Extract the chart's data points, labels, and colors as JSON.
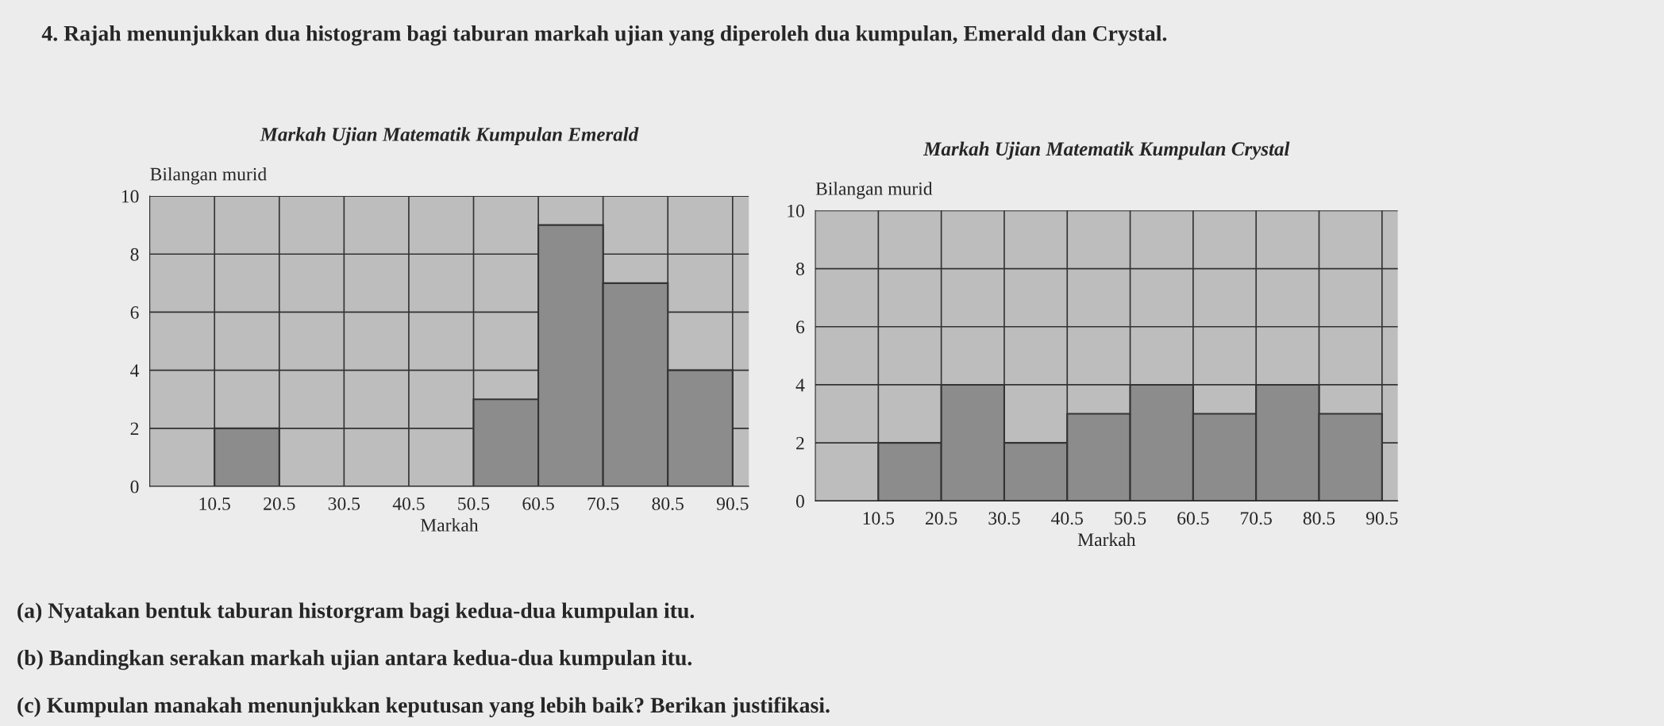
{
  "chart_data": [
    {
      "type": "histogram",
      "title": "Markah Ujian Matematik Kumpulan Emerald",
      "xlabel": "Markah",
      "ylabel": "Bilangan murid",
      "bins": [
        10.5,
        20.5,
        30.5,
        40.5,
        50.5,
        60.5,
        70.5,
        80.5,
        90.5
      ],
      "values": [
        2,
        0,
        0,
        0,
        3,
        9,
        7,
        4
      ],
      "color": "#8c8c8c",
      "xlim": [
        0.5,
        93
      ],
      "xticks": [
        10.5,
        20.5,
        30.5,
        40.5,
        50.5,
        60.5,
        70.5,
        80.5,
        90.5
      ],
      "ylim": [
        0,
        10
      ],
      "yticks": [
        0,
        2,
        4,
        6,
        8,
        10
      ],
      "grid": true,
      "annotations": [
        "4. Rajah menunjukkan dua histogram bagi taburan markah ujian yang diperoleh dua kumpulan, Emerald dan Crystal.",
        "(a) Nyatakan bentuk taburan historgram bagi kedua-dua kumpulan itu.",
        "(b) Bandingkan serakan markah ujian antara kedua-dua kumpulan itu.",
        "(c) Kumpulan manakah menunjukkan keputusan yang lebih baik? Berikan justifikasi."
      ]
    },
    {
      "type": "histogram",
      "title": "Markah Ujian Matematik Kumpulan Crystal",
      "xlabel": "Markah",
      "ylabel": "Bilangan murid",
      "bins": [
        10.5,
        20.5,
        30.5,
        40.5,
        50.5,
        60.5,
        70.5,
        80.5,
        90.5
      ],
      "values": [
        2,
        4,
        2,
        3,
        4,
        3,
        4,
        3
      ],
      "color": "#8c8c8c",
      "xlim": [
        0.5,
        93
      ],
      "xticks": [
        10.5,
        20.5,
        30.5,
        40.5,
        50.5,
        60.5,
        70.5,
        80.5,
        90.5
      ],
      "ylim": [
        0,
        10
      ],
      "yticks": [
        0,
        2,
        4,
        6,
        8,
        10
      ],
      "grid": true
    }
  ]
}
